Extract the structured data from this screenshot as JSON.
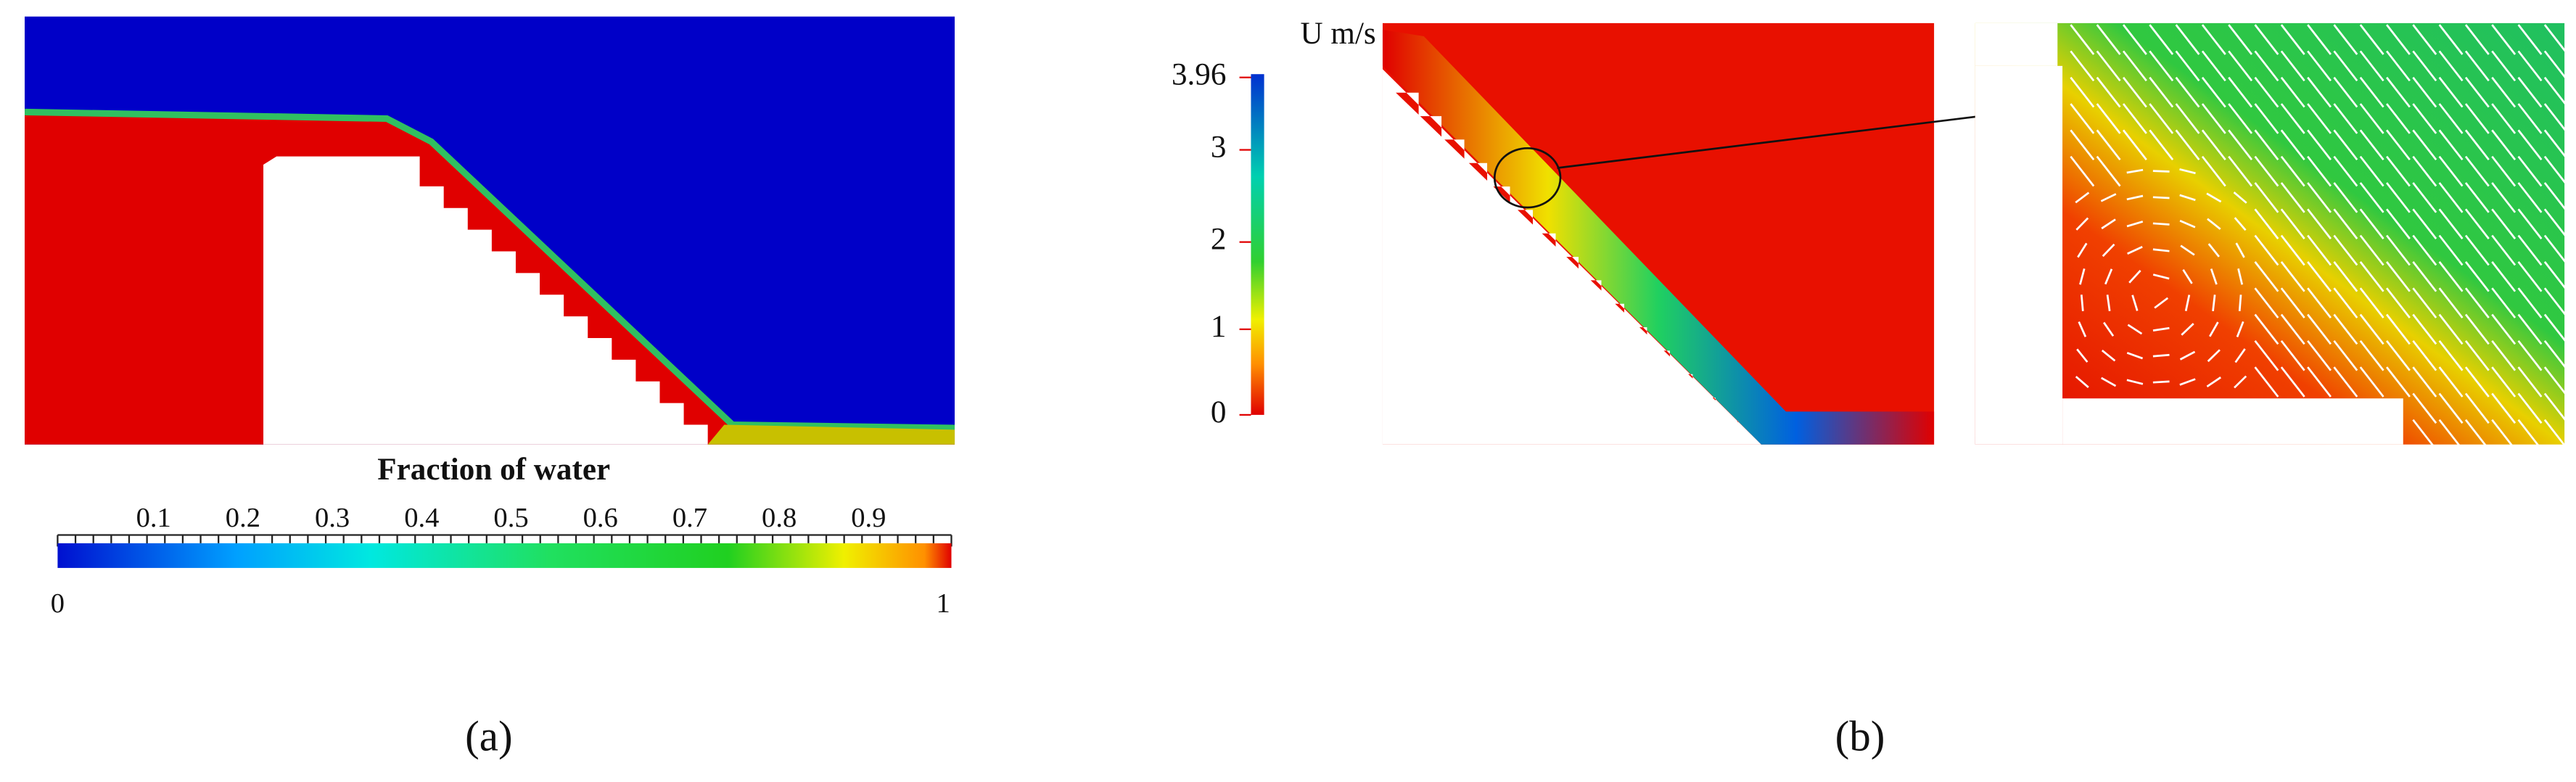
{
  "panel_a": {
    "colorbar_title": "Fraction of water",
    "ticks": [
      "0.1",
      "0.2",
      "0.3",
      "0.4",
      "0.5",
      "0.6",
      "0.7",
      "0.8",
      "0.9"
    ],
    "min_label": "0",
    "max_label": "1",
    "caption": "(a)"
  },
  "panel_b": {
    "colorbar_title": "U m/s",
    "ticks": [
      "3.96",
      "3",
      "2",
      "1",
      "0"
    ],
    "caption": "(b)"
  }
}
